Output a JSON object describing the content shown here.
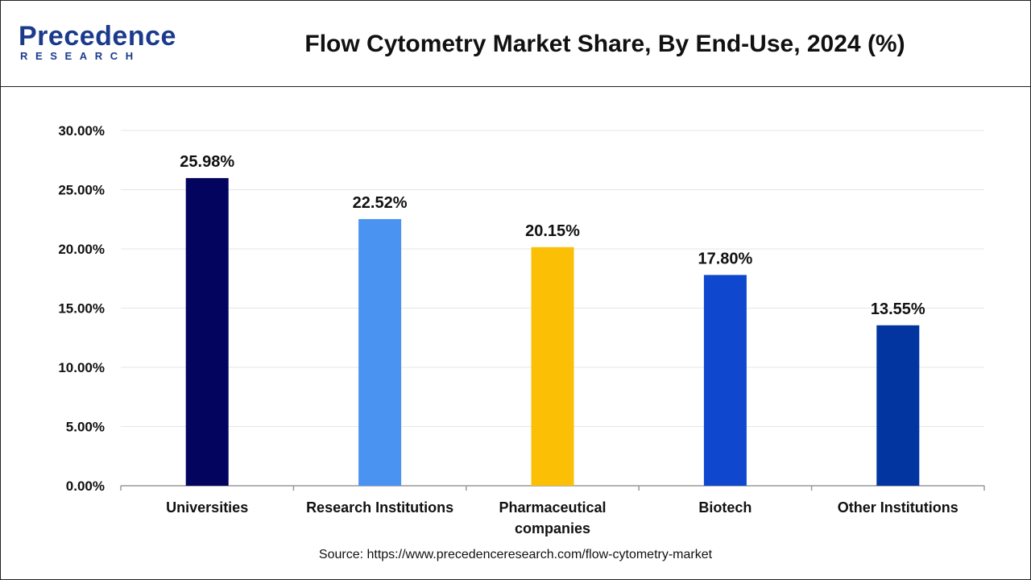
{
  "brand": {
    "name": "Precedence",
    "sub": "RESEARCH",
    "color": "#1b3a8c"
  },
  "header": {
    "title": "Flow Cytometry Market Share, By End-Use, 2024 (%)"
  },
  "source": "Source: https://www.precedenceresearch.com/flow-cytometry-market",
  "chart_data": {
    "type": "bar",
    "title": "Flow Cytometry Market Share, By End-Use, 2024 (%)",
    "xlabel": "",
    "ylabel": "",
    "categories": [
      "Universities",
      "Research Institutions",
      "Pharmaceutical companies",
      "Biotech",
      "Other Institutions"
    ],
    "category_lines": [
      [
        "Universities"
      ],
      [
        "Research Institutions"
      ],
      [
        "Pharmaceutical",
        "companies"
      ],
      [
        "Biotech"
      ],
      [
        "Other Institutions"
      ]
    ],
    "values": [
      25.98,
      22.52,
      20.15,
      17.8,
      13.55
    ],
    "value_labels": [
      "25.98%",
      "22.52%",
      "20.15%",
      "17.80%",
      "13.55%"
    ],
    "colors": [
      "#03045e",
      "#4a93f0",
      "#fbbf05",
      "#0f48cf",
      "#0335a1"
    ],
    "ylim": [
      0,
      30
    ],
    "yticks": [
      0,
      5,
      10,
      15,
      20,
      25,
      30
    ],
    "ytick_labels": [
      "0.00%",
      "5.00%",
      "10.00%",
      "15.00%",
      "20.00%",
      "25.00%",
      "30.00%"
    ],
    "grid": true,
    "legend": "none"
  }
}
